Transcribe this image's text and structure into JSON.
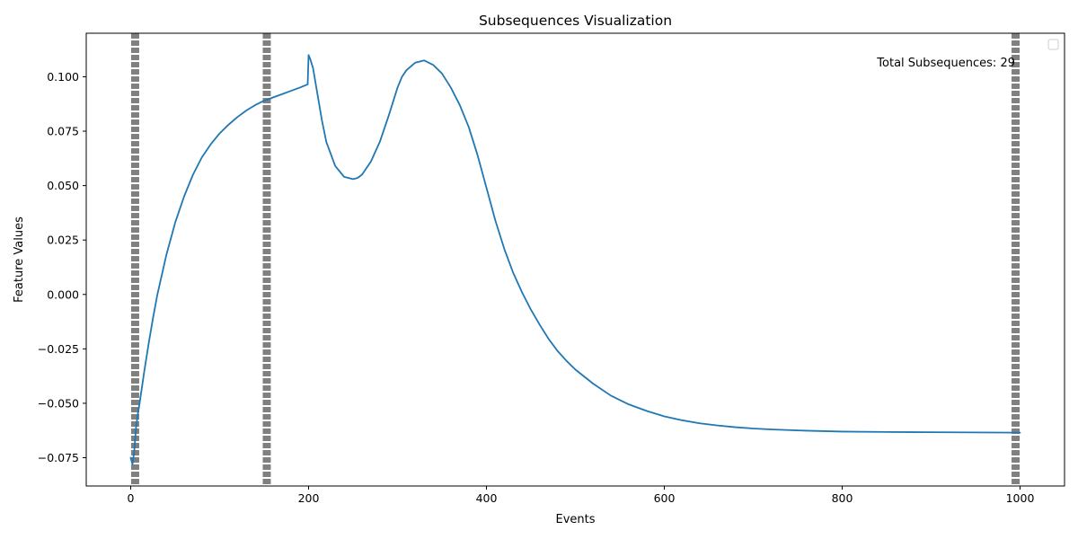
{
  "chart_data": {
    "type": "line",
    "title": "Subsequences Visualization",
    "xlabel": "Events",
    "ylabel": "Feature Values",
    "xlim": [
      -50,
      1050
    ],
    "ylim": [
      -0.088,
      0.12
    ],
    "x_ticks": [
      0,
      200,
      400,
      600,
      800,
      1000
    ],
    "x_tick_labels": [
      "0",
      "200",
      "400",
      "600",
      "800",
      "1000"
    ],
    "y_ticks": [
      -0.075,
      -0.05,
      -0.025,
      0.0,
      0.025,
      0.05,
      0.075,
      0.1
    ],
    "y_tick_labels": [
      "−0.075",
      "−0.050",
      "−0.025",
      "0.000",
      "0.025",
      "0.050",
      "0.075",
      "0.100"
    ],
    "grid": false,
    "legend": {
      "placement": "upper right",
      "entries": []
    },
    "annotation": "Total Subsequences: 29",
    "line_color": "#1f77b4",
    "boundary_color": "#808080",
    "boundaries": [
      5,
      153,
      995
    ],
    "series": [
      {
        "x": [
          0,
          2,
          4,
          6,
          8,
          10,
          15,
          20,
          25,
          30,
          40,
          50,
          60,
          70,
          80,
          90,
          100,
          110,
          120,
          130,
          140,
          150,
          160,
          170,
          180,
          190,
          199,
          200,
          202,
          205,
          210,
          215,
          220,
          230,
          240,
          250,
          255,
          260,
          270,
          280,
          290,
          300,
          305,
          310,
          320,
          330,
          340,
          350,
          360,
          370,
          380,
          390,
          400,
          410,
          420,
          430,
          440,
          450,
          460,
          470,
          480,
          490,
          500,
          520,
          540,
          560,
          580,
          600,
          620,
          640,
          660,
          680,
          700,
          720,
          740,
          760,
          780,
          800,
          850,
          900,
          950,
          1000
        ],
        "y": [
          -0.075,
          -0.078,
          -0.072,
          -0.061,
          -0.055,
          -0.05,
          -0.036,
          -0.023,
          -0.011,
          0.0,
          0.018,
          0.033,
          0.045,
          0.055,
          0.063,
          0.069,
          0.074,
          0.078,
          0.0815,
          0.0845,
          0.087,
          0.089,
          0.0905,
          0.092,
          0.0935,
          0.095,
          0.0965,
          0.11,
          0.108,
          0.104,
          0.092,
          0.08,
          0.07,
          0.059,
          0.054,
          0.053,
          0.0535,
          0.055,
          0.061,
          0.07,
          0.082,
          0.095,
          0.1,
          0.103,
          0.1065,
          0.1075,
          0.1055,
          0.1015,
          0.095,
          0.087,
          0.077,
          0.064,
          0.049,
          0.034,
          0.021,
          0.01,
          0.001,
          -0.007,
          -0.014,
          -0.0205,
          -0.026,
          -0.0305,
          -0.0345,
          -0.041,
          -0.0465,
          -0.0505,
          -0.0535,
          -0.056,
          -0.0578,
          -0.0592,
          -0.0602,
          -0.061,
          -0.0616,
          -0.062,
          -0.0623,
          -0.0626,
          -0.0628,
          -0.063,
          -0.0632,
          -0.0633,
          -0.0634,
          -0.0635
        ]
      }
    ]
  }
}
